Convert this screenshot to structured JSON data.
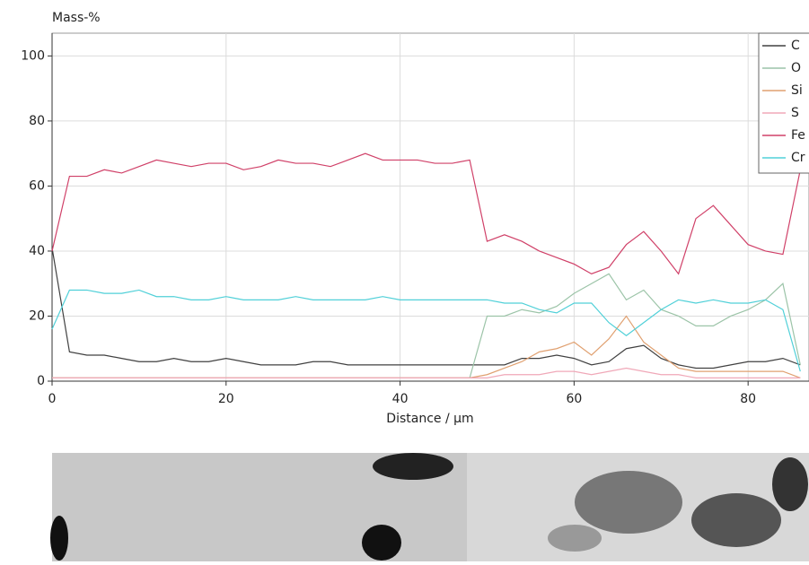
{
  "chart_data": {
    "type": "line",
    "y_label": "Mass-%",
    "x_label": "Distance / µm",
    "xlim": [
      0,
      87
    ],
    "ylim": [
      0,
      107
    ],
    "xticks": [
      0,
      20,
      40,
      60,
      80
    ],
    "yticks": [
      0,
      20,
      40,
      60,
      80,
      100
    ],
    "grid": true,
    "legend": "top-right",
    "x": [
      0,
      2,
      4,
      6,
      8,
      10,
      12,
      14,
      16,
      18,
      20,
      22,
      24,
      26,
      28,
      30,
      32,
      34,
      36,
      38,
      40,
      42,
      44,
      46,
      48,
      50,
      52,
      54,
      56,
      58,
      60,
      62,
      64,
      66,
      68,
      70,
      72,
      74,
      76,
      78,
      80,
      82,
      84,
      86
    ],
    "series": [
      {
        "name": "C",
        "color": "#404040",
        "values": [
          41,
          9,
          8,
          8,
          7,
          6,
          6,
          7,
          6,
          6,
          7,
          6,
          5,
          5,
          5,
          6,
          6,
          5,
          5,
          5,
          5,
          5,
          5,
          5,
          5,
          5,
          5,
          7,
          7,
          8,
          7,
          5,
          6,
          10,
          11,
          7,
          5,
          4,
          4,
          5,
          6,
          6,
          7,
          5
        ]
      },
      {
        "name": "O",
        "color": "#9cc4a8",
        "values": [
          1,
          1,
          1,
          1,
          1,
          1,
          1,
          1,
          1,
          1,
          1,
          1,
          1,
          1,
          1,
          1,
          1,
          1,
          1,
          1,
          1,
          1,
          1,
          1,
          1,
          20,
          20,
          22,
          21,
          23,
          27,
          30,
          33,
          25,
          28,
          22,
          20,
          17,
          17,
          20,
          22,
          25,
          30,
          5
        ]
      },
      {
        "name": "Si",
        "color": "#e0a070",
        "values": [
          1,
          1,
          1,
          1,
          1,
          1,
          1,
          1,
          1,
          1,
          1,
          1,
          1,
          1,
          1,
          1,
          1,
          1,
          1,
          1,
          1,
          1,
          1,
          1,
          1,
          2,
          4,
          6,
          9,
          10,
          12,
          8,
          13,
          20,
          12,
          8,
          4,
          3,
          3,
          3,
          3,
          3,
          3,
          1
        ]
      },
      {
        "name": "S",
        "color": "#f0a8b8",
        "values": [
          1,
          1,
          1,
          1,
          1,
          1,
          1,
          1,
          1,
          1,
          1,
          1,
          1,
          1,
          1,
          1,
          1,
          1,
          1,
          1,
          1,
          1,
          1,
          1,
          1,
          1,
          2,
          2,
          2,
          3,
          3,
          2,
          3,
          4,
          3,
          2,
          2,
          1,
          1,
          1,
          1,
          1,
          1,
          1
        ]
      },
      {
        "name": "Fe",
        "color": "#d04068",
        "values": [
          40,
          63,
          63,
          65,
          64,
          66,
          68,
          67,
          66,
          67,
          67,
          65,
          66,
          68,
          67,
          67,
          66,
          68,
          70,
          68,
          68,
          68,
          67,
          67,
          68,
          43,
          45,
          43,
          40,
          38,
          36,
          33,
          35,
          42,
          46,
          40,
          33,
          50,
          54,
          48,
          42,
          40,
          39,
          65
        ]
      },
      {
        "name": "Cr",
        "color": "#50d0d8",
        "values": [
          16,
          28,
          28,
          27,
          27,
          28,
          26,
          26,
          25,
          25,
          26,
          25,
          25,
          25,
          26,
          25,
          25,
          25,
          25,
          26,
          25,
          25,
          25,
          25,
          25,
          25,
          24,
          24,
          22,
          21,
          24,
          24,
          18,
          14,
          18,
          22,
          25,
          24,
          25,
          24,
          24,
          25,
          22,
          3
        ]
      }
    ]
  }
}
